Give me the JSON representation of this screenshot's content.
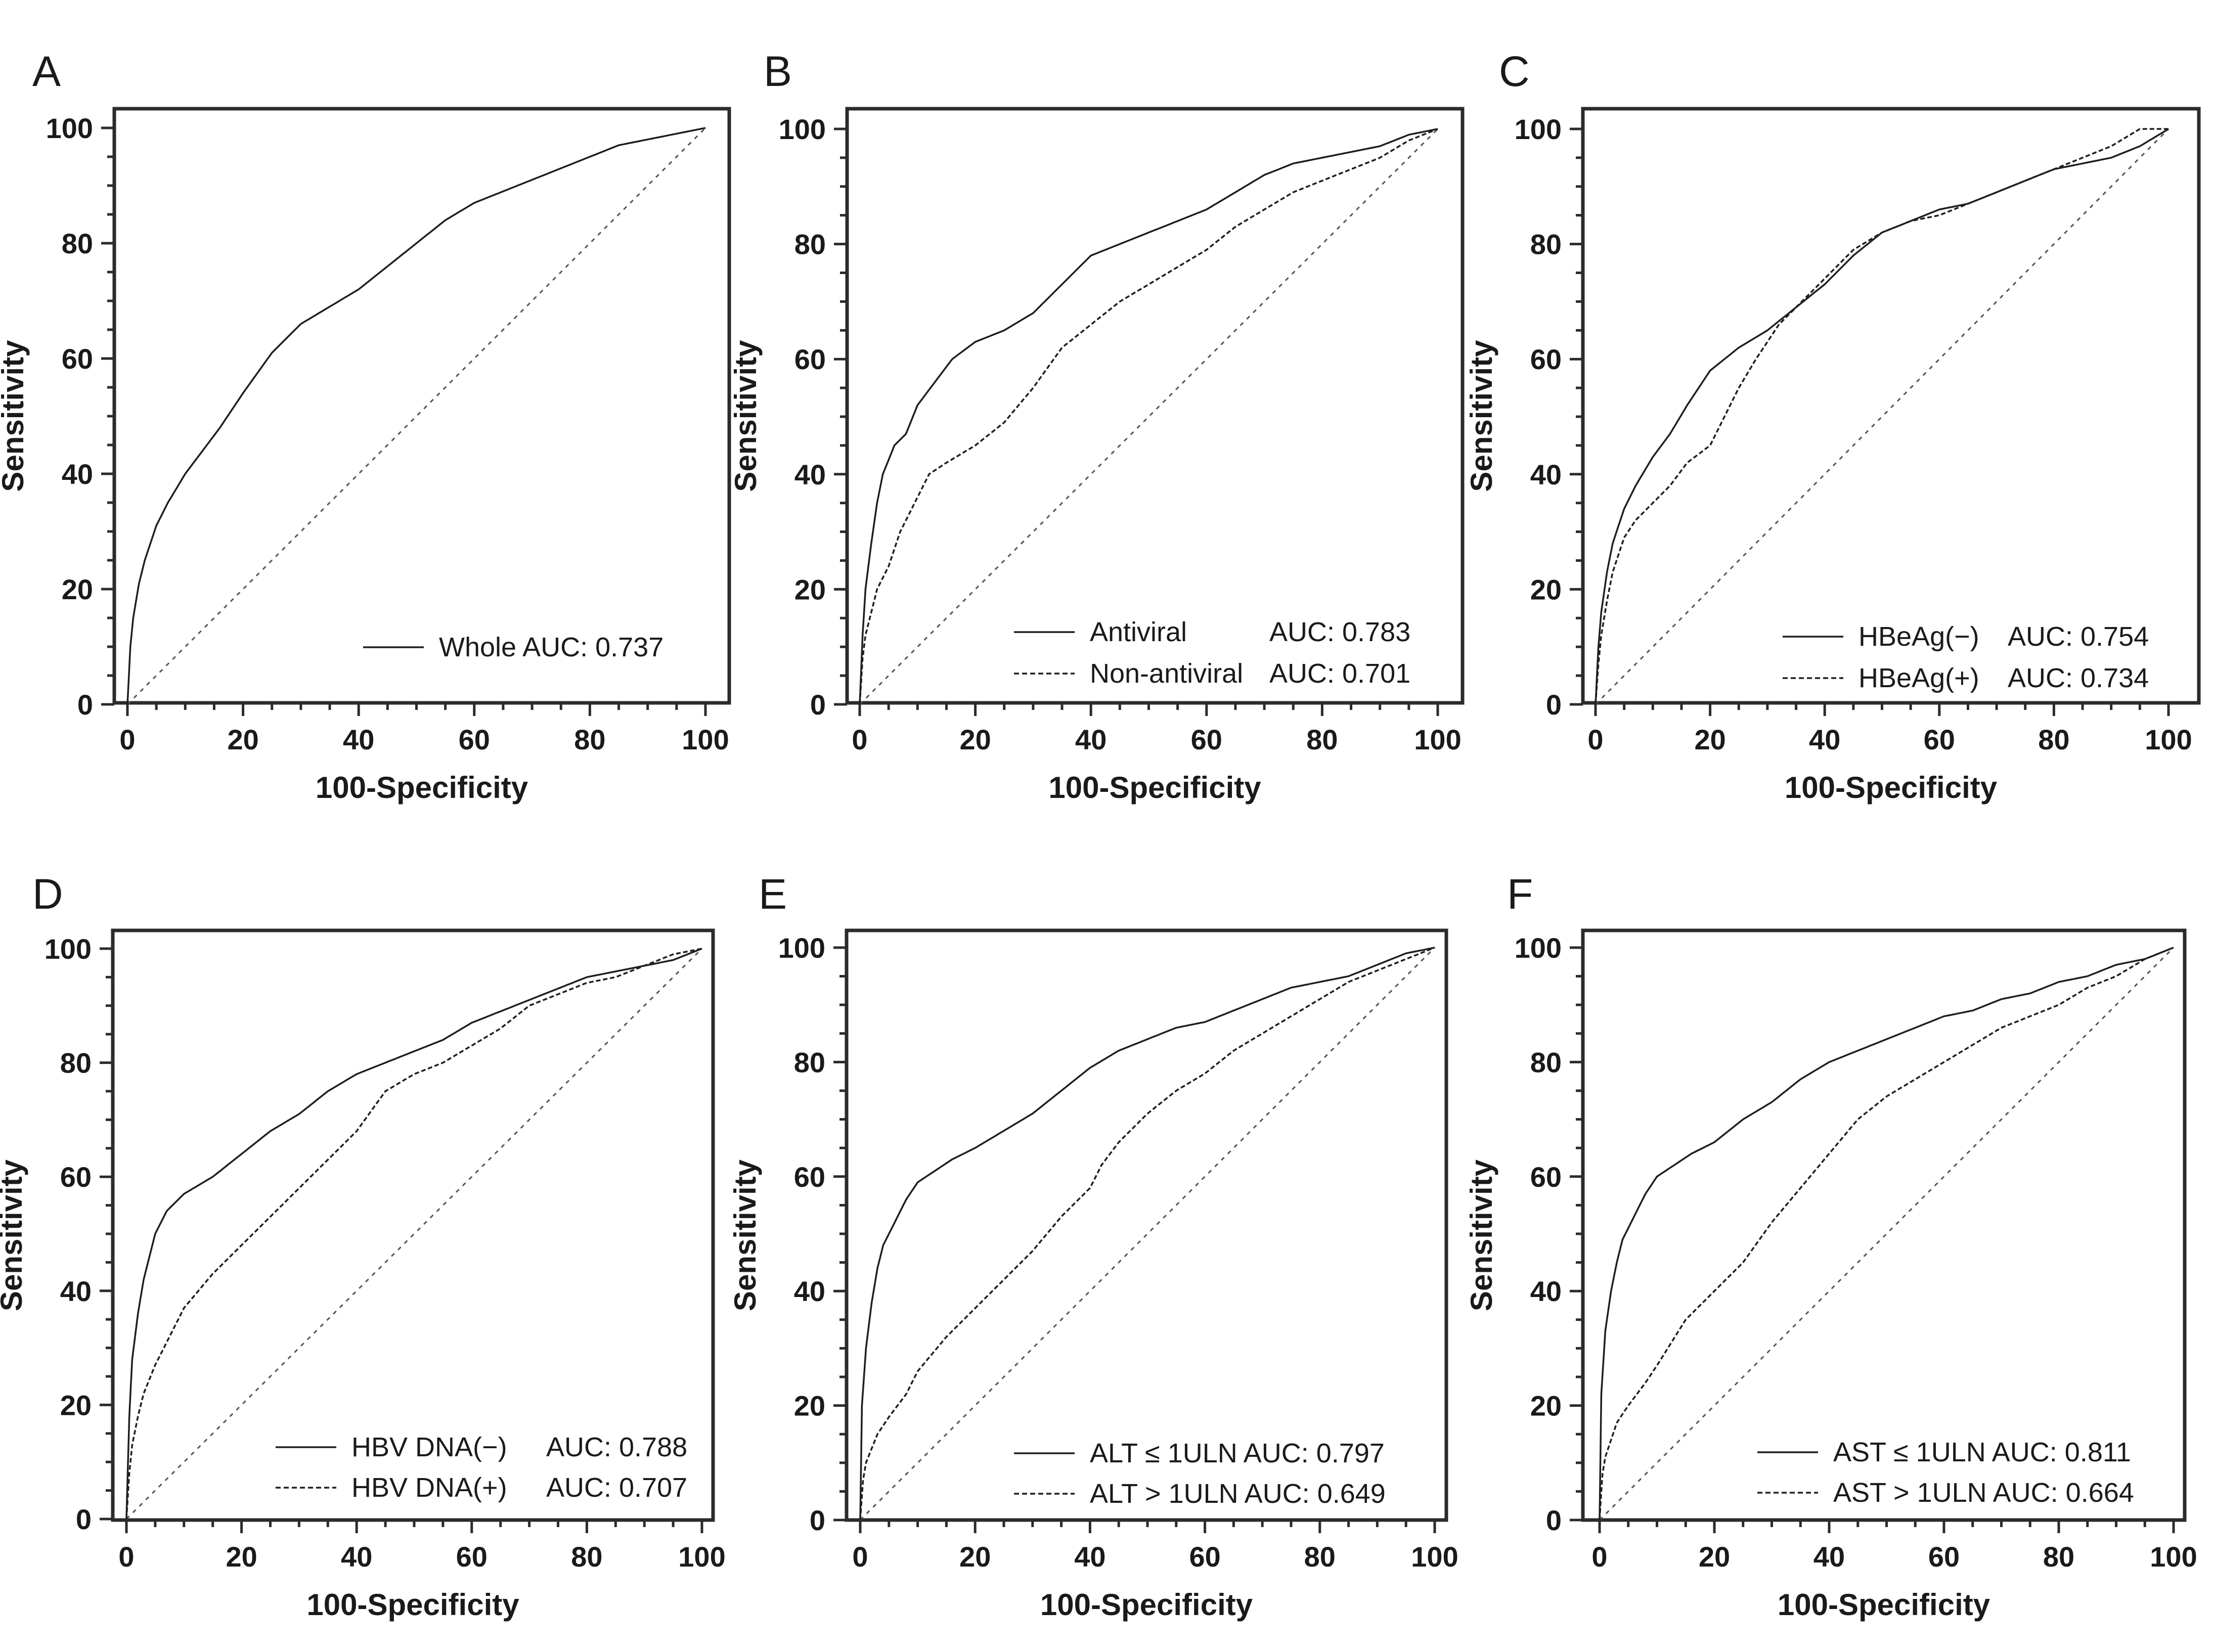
{
  "figure": {
    "panels": [
      {
        "letter": "A",
        "legend": [
          {
            "style": "solid",
            "label": "Whole AUC: 0.737"
          }
        ]
      },
      {
        "letter": "B",
        "legend": [
          {
            "style": "solid",
            "label": "Antiviral",
            "auc": "AUC: 0.783"
          },
          {
            "style": "dashed",
            "label": "Non-antiviral",
            "auc": "AUC: 0.701"
          }
        ]
      },
      {
        "letter": "C",
        "legend": [
          {
            "style": "solid",
            "label": "HBeAg(−)",
            "auc": "AUC: 0.754"
          },
          {
            "style": "dashed",
            "label": "HBeAg(+)",
            "auc": "AUC: 0.734"
          }
        ]
      },
      {
        "letter": "D",
        "legend": [
          {
            "style": "solid",
            "label": "HBV DNA(−)",
            "auc": "AUC: 0.788"
          },
          {
            "style": "dashed",
            "label": "HBV DNA(+)",
            "auc": "AUC: 0.707"
          }
        ]
      },
      {
        "letter": "E",
        "legend": [
          {
            "style": "solid",
            "label": "ALT ≤ 1ULN AUC: 0.797"
          },
          {
            "style": "dashed",
            "label": "ALT > 1ULN AUC: 0.649"
          }
        ]
      },
      {
        "letter": "F",
        "legend": [
          {
            "style": "solid",
            "label": "AST ≤ 1ULN AUC: 0.811"
          },
          {
            "style": "dashed",
            "label": "AST > 1ULN AUC: 0.664"
          }
        ]
      }
    ]
  },
  "chart_data": [
    {
      "panel": "A",
      "type": "line",
      "xlabel": "100-Specificity",
      "ylabel": "Sensitivity",
      "xlim": [
        0,
        100
      ],
      "ylim": [
        0,
        100
      ],
      "xticks": [
        0,
        20,
        40,
        60,
        80,
        100
      ],
      "yticks": [
        0,
        20,
        40,
        60,
        80,
        100
      ],
      "reference_line": "diagonal",
      "series": [
        {
          "name": "Whole",
          "style": "solid",
          "auc": 0.737,
          "x": [
            0,
            0.5,
            1,
            2,
            3,
            5,
            7,
            10,
            13,
            16,
            20,
            25,
            30,
            35,
            40,
            45,
            50,
            55,
            60,
            65,
            70,
            75,
            80,
            85,
            90,
            95,
            100
          ],
          "y": [
            0,
            10,
            15,
            21,
            25,
            31,
            35,
            40,
            44,
            48,
            54,
            61,
            66,
            69,
            72,
            76,
            80,
            84,
            87,
            89,
            91,
            93,
            95,
            97,
            98,
            99,
            100
          ]
        }
      ]
    },
    {
      "panel": "B",
      "type": "line",
      "xlabel": "100-Specificity",
      "ylabel": "Sensitivity",
      "xlim": [
        0,
        100
      ],
      "ylim": [
        0,
        100
      ],
      "xticks": [
        0,
        20,
        40,
        60,
        80,
        100
      ],
      "yticks": [
        0,
        20,
        40,
        60,
        80,
        100
      ],
      "reference_line": "diagonal",
      "series": [
        {
          "name": "Antiviral",
          "style": "solid",
          "auc": 0.783,
          "x": [
            0,
            0.5,
            1,
            2,
            3,
            4,
            6,
            8,
            10,
            13,
            16,
            20,
            25,
            30,
            35,
            40,
            45,
            50,
            55,
            60,
            65,
            70,
            75,
            80,
            85,
            90,
            95,
            100
          ],
          "y": [
            0,
            12,
            20,
            28,
            35,
            40,
            45,
            47,
            52,
            56,
            60,
            63,
            65,
            68,
            73,
            78,
            80,
            82,
            84,
            86,
            89,
            92,
            94,
            95,
            96,
            97,
            99,
            100
          ]
        },
        {
          "name": "Non-antiviral",
          "style": "dashed",
          "auc": 0.701,
          "x": [
            0,
            0.5,
            1,
            2,
            3,
            5,
            7,
            10,
            12,
            15,
            20,
            25,
            30,
            35,
            40,
            45,
            50,
            55,
            60,
            65,
            70,
            75,
            80,
            85,
            90,
            95,
            100
          ],
          "y": [
            0,
            8,
            12,
            16,
            20,
            24,
            30,
            36,
            40,
            42,
            45,
            49,
            55,
            62,
            66,
            70,
            73,
            76,
            79,
            83,
            86,
            89,
            91,
            93,
            95,
            98,
            100
          ]
        }
      ]
    },
    {
      "panel": "C",
      "type": "line",
      "xlabel": "100-Specificity",
      "ylabel": "Sensitivity",
      "xlim": [
        0,
        100
      ],
      "ylim": [
        0,
        100
      ],
      "xticks": [
        0,
        20,
        40,
        60,
        80,
        100
      ],
      "yticks": [
        0,
        20,
        40,
        60,
        80,
        100
      ],
      "reference_line": "diagonal",
      "series": [
        {
          "name": "HBeAg(−)",
          "style": "solid",
          "auc": 0.754,
          "x": [
            0,
            0.5,
            1,
            2,
            3,
            5,
            7,
            10,
            13,
            16,
            20,
            25,
            30,
            35,
            40,
            45,
            50,
            55,
            60,
            65,
            70,
            75,
            80,
            85,
            90,
            95,
            100
          ],
          "y": [
            0,
            10,
            16,
            23,
            28,
            34,
            38,
            43,
            47,
            52,
            58,
            62,
            65,
            69,
            73,
            78,
            82,
            84,
            86,
            87,
            89,
            91,
            93,
            94,
            95,
            97,
            100
          ]
        },
        {
          "name": "HBeAg(+)",
          "style": "dashed",
          "auc": 0.734,
          "x": [
            0,
            0.5,
            1,
            2,
            3,
            5,
            7,
            10,
            13,
            16,
            20,
            25,
            28,
            32,
            36,
            40,
            45,
            50,
            55,
            60,
            65,
            70,
            75,
            80,
            85,
            90,
            95,
            100
          ],
          "y": [
            0,
            7,
            12,
            18,
            23,
            29,
            32,
            35,
            38,
            42,
            45,
            55,
            60,
            66,
            70,
            74,
            79,
            82,
            84,
            85,
            87,
            89,
            91,
            93,
            95,
            97,
            100,
            100
          ]
        }
      ]
    },
    {
      "panel": "D",
      "type": "line",
      "xlabel": "100-Specificity",
      "ylabel": "Sensitivity",
      "xlim": [
        0,
        100
      ],
      "ylim": [
        0,
        100
      ],
      "xticks": [
        0,
        20,
        40,
        60,
        80,
        100
      ],
      "yticks": [
        0,
        20,
        40,
        60,
        80,
        100
      ],
      "reference_line": "diagonal",
      "series": [
        {
          "name": "HBV DNA(−)",
          "style": "solid",
          "auc": 0.788,
          "x": [
            0,
            0.5,
            1,
            2,
            3,
            4,
            5,
            7,
            10,
            15,
            20,
            25,
            30,
            35,
            40,
            45,
            50,
            55,
            60,
            65,
            70,
            75,
            80,
            85,
            90,
            95,
            100
          ],
          "y": [
            0,
            18,
            28,
            36,
            42,
            46,
            50,
            54,
            57,
            60,
            64,
            68,
            71,
            75,
            78,
            80,
            82,
            84,
            87,
            89,
            91,
            93,
            95,
            96,
            97,
            98,
            100
          ]
        },
        {
          "name": "HBV DNA(+)",
          "style": "dashed",
          "auc": 0.707,
          "x": [
            0,
            0.5,
            1,
            2,
            3,
            5,
            7,
            10,
            15,
            20,
            25,
            30,
            35,
            40,
            45,
            50,
            55,
            60,
            65,
            70,
            75,
            80,
            85,
            90,
            95,
            100
          ],
          "y": [
            0,
            8,
            13,
            18,
            22,
            27,
            31,
            37,
            43,
            48,
            53,
            58,
            63,
            68,
            75,
            78,
            80,
            83,
            86,
            90,
            92,
            94,
            95,
            97,
            99,
            100
          ]
        }
      ]
    },
    {
      "panel": "E",
      "type": "line",
      "xlabel": "100-Specificity",
      "ylabel": "Sensitivity",
      "xlim": [
        0,
        100
      ],
      "ylim": [
        0,
        100
      ],
      "xticks": [
        0,
        20,
        40,
        60,
        80,
        100
      ],
      "yticks": [
        0,
        20,
        40,
        60,
        80,
        100
      ],
      "reference_line": "diagonal",
      "series": [
        {
          "name": "ALT ≤ 1ULN",
          "style": "solid",
          "auc": 0.797,
          "x": [
            0,
            0.3,
            1,
            2,
            3,
            4,
            6,
            8,
            10,
            13,
            16,
            20,
            25,
            30,
            35,
            40,
            45,
            50,
            55,
            60,
            65,
            70,
            75,
            80,
            85,
            90,
            95,
            100
          ],
          "y": [
            0,
            20,
            30,
            38,
            44,
            48,
            52,
            56,
            59,
            61,
            63,
            65,
            68,
            71,
            75,
            79,
            82,
            84,
            86,
            87,
            89,
            91,
            93,
            94,
            95,
            97,
            99,
            100
          ]
        },
        {
          "name": "ALT > 1ULN",
          "style": "dashed",
          "auc": 0.649,
          "x": [
            0,
            0.5,
            1,
            3,
            5,
            8,
            10,
            15,
            20,
            25,
            30,
            35,
            40,
            42,
            45,
            50,
            55,
            60,
            65,
            70,
            75,
            80,
            85,
            90,
            95,
            100
          ],
          "y": [
            0,
            7,
            10,
            15,
            18,
            22,
            26,
            32,
            37,
            42,
            47,
            53,
            58,
            62,
            66,
            71,
            75,
            78,
            82,
            85,
            88,
            91,
            94,
            96,
            98,
            100
          ]
        }
      ]
    },
    {
      "panel": "F",
      "type": "line",
      "xlabel": "100-Specificity",
      "ylabel": "Sensitivity",
      "xlim": [
        0,
        100
      ],
      "ylim": [
        0,
        100
      ],
      "xticks": [
        0,
        20,
        40,
        60,
        80,
        100
      ],
      "yticks": [
        0,
        20,
        40,
        60,
        80,
        100
      ],
      "reference_line": "diagonal",
      "series": [
        {
          "name": "AST ≤ 1ULN",
          "style": "solid",
          "auc": 0.811,
          "x": [
            0,
            0.3,
            1,
            2,
            3,
            4,
            6,
            8,
            10,
            13,
            16,
            20,
            25,
            30,
            35,
            40,
            45,
            50,
            55,
            60,
            65,
            70,
            75,
            80,
            85,
            90,
            95,
            100
          ],
          "y": [
            0,
            22,
            33,
            40,
            45,
            49,
            53,
            57,
            60,
            62,
            64,
            66,
            70,
            73,
            77,
            80,
            82,
            84,
            86,
            88,
            89,
            91,
            92,
            94,
            95,
            97,
            98,
            100
          ]
        },
        {
          "name": "AST > 1ULN",
          "style": "dashed",
          "auc": 0.664,
          "x": [
            0,
            0.5,
            1,
            3,
            5,
            8,
            10,
            15,
            20,
            25,
            30,
            35,
            40,
            45,
            50,
            55,
            60,
            65,
            70,
            75,
            80,
            85,
            90,
            95,
            100
          ],
          "y": [
            0,
            8,
            11,
            17,
            20,
            24,
            27,
            35,
            40,
            45,
            52,
            58,
            64,
            70,
            74,
            77,
            80,
            83,
            86,
            88,
            90,
            93,
            95,
            98,
            100
          ]
        }
      ]
    }
  ]
}
